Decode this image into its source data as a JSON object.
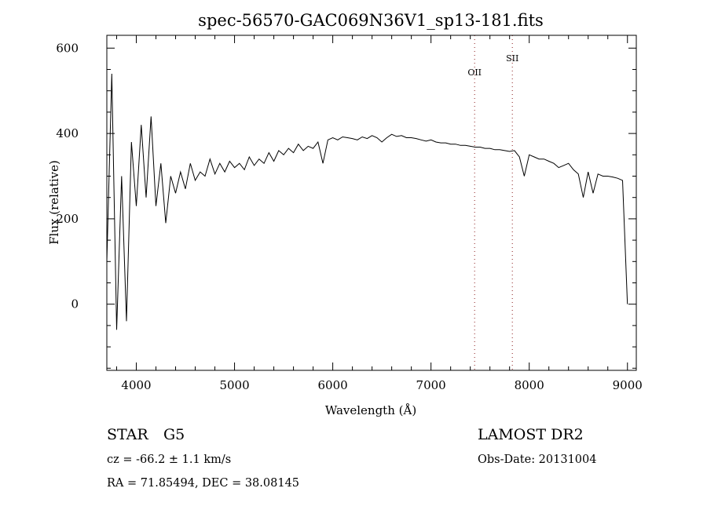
{
  "chart_data": {
    "type": "line",
    "title": "spec-56570-GAC069N36V1_sp13-181.fits",
    "xlabel": "Wavelength (Å)",
    "ylabel": "Flux (relative)",
    "xlim": [
      3700,
      9090
    ],
    "ylim": [
      -155,
      630
    ],
    "x_ticks": [
      4000,
      5000,
      6000,
      7000,
      8000,
      9000
    ],
    "y_ticks": [
      0,
      200,
      400,
      600
    ],
    "x_tick_labels": [
      "4000",
      "5000",
      "6000",
      "7000",
      "8000",
      "9000"
    ],
    "y_tick_labels": [
      "0",
      "200",
      "400",
      "600"
    ],
    "grid": false,
    "series": [
      {
        "name": "spectrum",
        "x_start": 3700,
        "x_step": 50,
        "values": [
          100,
          540,
          -60,
          300,
          -40,
          380,
          230,
          420,
          250,
          440,
          230,
          330,
          190,
          300,
          260,
          310,
          270,
          330,
          290,
          310,
          300,
          340,
          305,
          330,
          310,
          335,
          320,
          330,
          315,
          345,
          325,
          340,
          330,
          355,
          335,
          360,
          350,
          365,
          355,
          375,
          360,
          370,
          365,
          380,
          330,
          385,
          390,
          385,
          392,
          390,
          388,
          385,
          392,
          388,
          395,
          390,
          380,
          390,
          398,
          393,
          395,
          390,
          390,
          388,
          385,
          382,
          385,
          380,
          378,
          378,
          375,
          375,
          372,
          372,
          370,
          368,
          368,
          365,
          365,
          362,
          362,
          360,
          358,
          360,
          345,
          300,
          350,
          345,
          340,
          340,
          335,
          330,
          320,
          325,
          330,
          315,
          305,
          250,
          310,
          260,
          305,
          300,
          300,
          298,
          295,
          290,
          0
        ]
      }
    ],
    "annotations": [
      {
        "label": "OII",
        "x": 7444,
        "color": "#8b1a1a"
      },
      {
        "label": "SII",
        "x": 7828,
        "color": "#8b1a1a"
      }
    ]
  },
  "info": {
    "class": "STAR",
    "subclass": "G5",
    "cz": "cz = -66.2 ± 1.1 km/s",
    "radec": "RA =  71.85494, DEC =  38.08145",
    "survey": "LAMOST DR2",
    "obs_date": "Obs-Date: 20131004"
  }
}
